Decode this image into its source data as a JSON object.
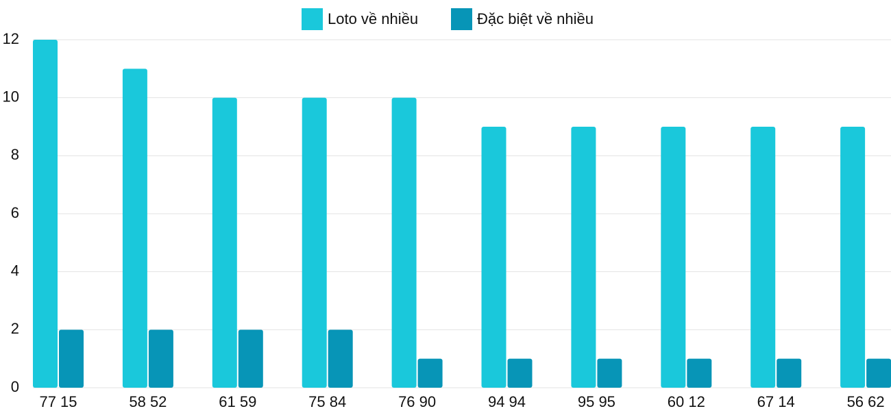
{
  "chart_data": {
    "type": "bar",
    "categories": [
      "77 15",
      "58 52",
      "61 59",
      "75 84",
      "76 90",
      "94 94",
      "95 95",
      "60 12",
      "67 14",
      "56 62"
    ],
    "series": [
      {
        "name": "Loto về nhiều",
        "color": "#1ac8db",
        "values": [
          12,
          11,
          10,
          10,
          10,
          9,
          9,
          9,
          9,
          9
        ]
      },
      {
        "name": "Đặc biệt về nhiều",
        "color": "#0795b7",
        "values": [
          2,
          2,
          2,
          2,
          1,
          1,
          1,
          1,
          1,
          1
        ]
      }
    ],
    "ylim": [
      0,
      12
    ],
    "yticks": [
      0,
      2,
      4,
      6,
      8,
      10,
      12
    ],
    "grid": true,
    "legend": "top"
  }
}
